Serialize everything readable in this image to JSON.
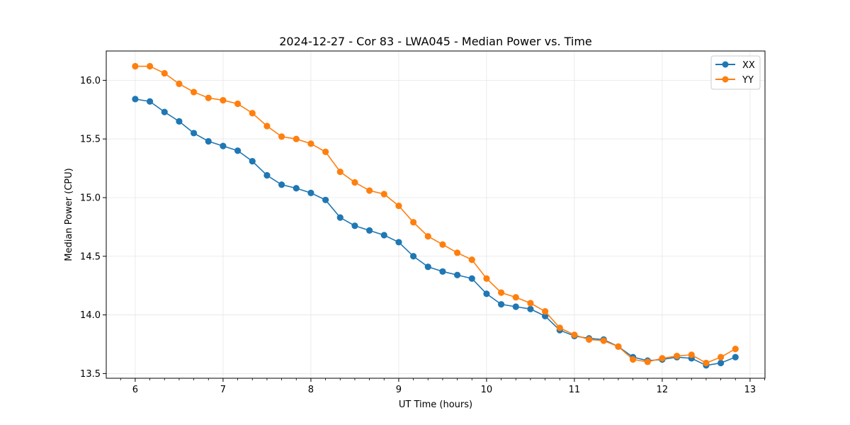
{
  "chart_data": {
    "type": "line",
    "title": "2024-12-27 - Cor 83 - LWA045 - Median Power vs. Time",
    "xlabel": "UT Time (hours)",
    "ylabel": "Median Power (CPU)",
    "xlim": [
      5.67,
      13.17
    ],
    "ylim": [
      13.46,
      16.25
    ],
    "xticks": [
      6,
      7,
      8,
      9,
      10,
      11,
      12,
      13
    ],
    "yticks": [
      13.5,
      14.0,
      14.5,
      15.0,
      15.5,
      16.0
    ],
    "grid": true,
    "legend_position": "top-right",
    "x": [
      6.0,
      6.1667,
      6.3333,
      6.5,
      6.6667,
      6.8333,
      7.0,
      7.1667,
      7.3333,
      7.5,
      7.6667,
      7.8333,
      8.0,
      8.1667,
      8.3333,
      8.5,
      8.6667,
      8.8333,
      9.0,
      9.1667,
      9.3333,
      9.5,
      9.6667,
      9.8333,
      10.0,
      10.1667,
      10.3333,
      10.5,
      10.6667,
      10.8333,
      11.0,
      11.1667,
      11.3333,
      11.5,
      11.6667,
      11.8333,
      12.0,
      12.1667,
      12.3333,
      12.5,
      12.6667,
      12.8333
    ],
    "series": [
      {
        "name": "XX",
        "color": "#1f77b4",
        "values": [
          15.84,
          15.82,
          15.73,
          15.65,
          15.55,
          15.48,
          15.44,
          15.4,
          15.31,
          15.19,
          15.11,
          15.08,
          15.04,
          14.98,
          14.83,
          14.76,
          14.72,
          14.68,
          14.62,
          14.5,
          14.41,
          14.37,
          14.34,
          14.31,
          14.18,
          14.09,
          14.07,
          14.05,
          13.99,
          13.87,
          13.82,
          13.8,
          13.79,
          13.73,
          13.64,
          13.61,
          13.62,
          13.64,
          13.63,
          13.57,
          13.59,
          13.64
        ]
      },
      {
        "name": "YY",
        "color": "#ff7f0e",
        "values": [
          16.12,
          16.12,
          16.06,
          15.97,
          15.9,
          15.85,
          15.83,
          15.8,
          15.72,
          15.61,
          15.52,
          15.5,
          15.46,
          15.39,
          15.22,
          15.13,
          15.06,
          15.03,
          14.93,
          14.79,
          14.67,
          14.6,
          14.53,
          14.47,
          14.31,
          14.19,
          14.15,
          14.1,
          14.03,
          13.89,
          13.83,
          13.79,
          13.78,
          13.73,
          13.62,
          13.6,
          13.63,
          13.65,
          13.66,
          13.59,
          13.64,
          13.71
        ]
      }
    ]
  }
}
